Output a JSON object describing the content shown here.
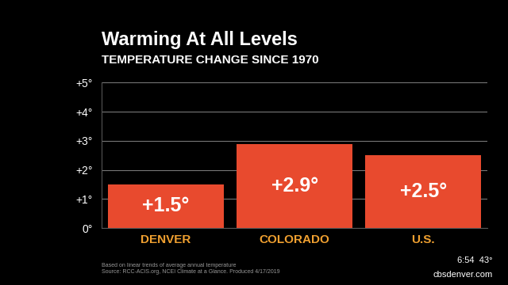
{
  "chart_data": {
    "type": "bar",
    "title": "Warming At All Levels",
    "subtitle": "TEMPERATURE CHANGE SINCE 1970",
    "categories": [
      "DENVER",
      "COLORADO",
      "U.S."
    ],
    "values": [
      1.5,
      2.9,
      2.5
    ],
    "value_labels": [
      "+1.5°",
      "+2.9°",
      "+2.5°"
    ],
    "data_labels": true,
    "color": "#e84a2e",
    "ylim": [
      0,
      5
    ],
    "yticks": [
      {
        "value": 0,
        "label": "0°"
      },
      {
        "value": 1,
        "label": "+1°"
      },
      {
        "value": 2,
        "label": "+2°"
      },
      {
        "value": 3,
        "label": "+3°"
      },
      {
        "value": 4,
        "label": "+4°"
      },
      {
        "value": 5,
        "label": "+5°"
      }
    ],
    "grid": true,
    "source": "Based on linear trends of average annual temperature\nSource: RCC-ACIS.org, NCEI Climate at a Glance. Produced 4/17/2019",
    "annotations": [
      "6:54  43°",
      "cbsdenver.com"
    ]
  }
}
